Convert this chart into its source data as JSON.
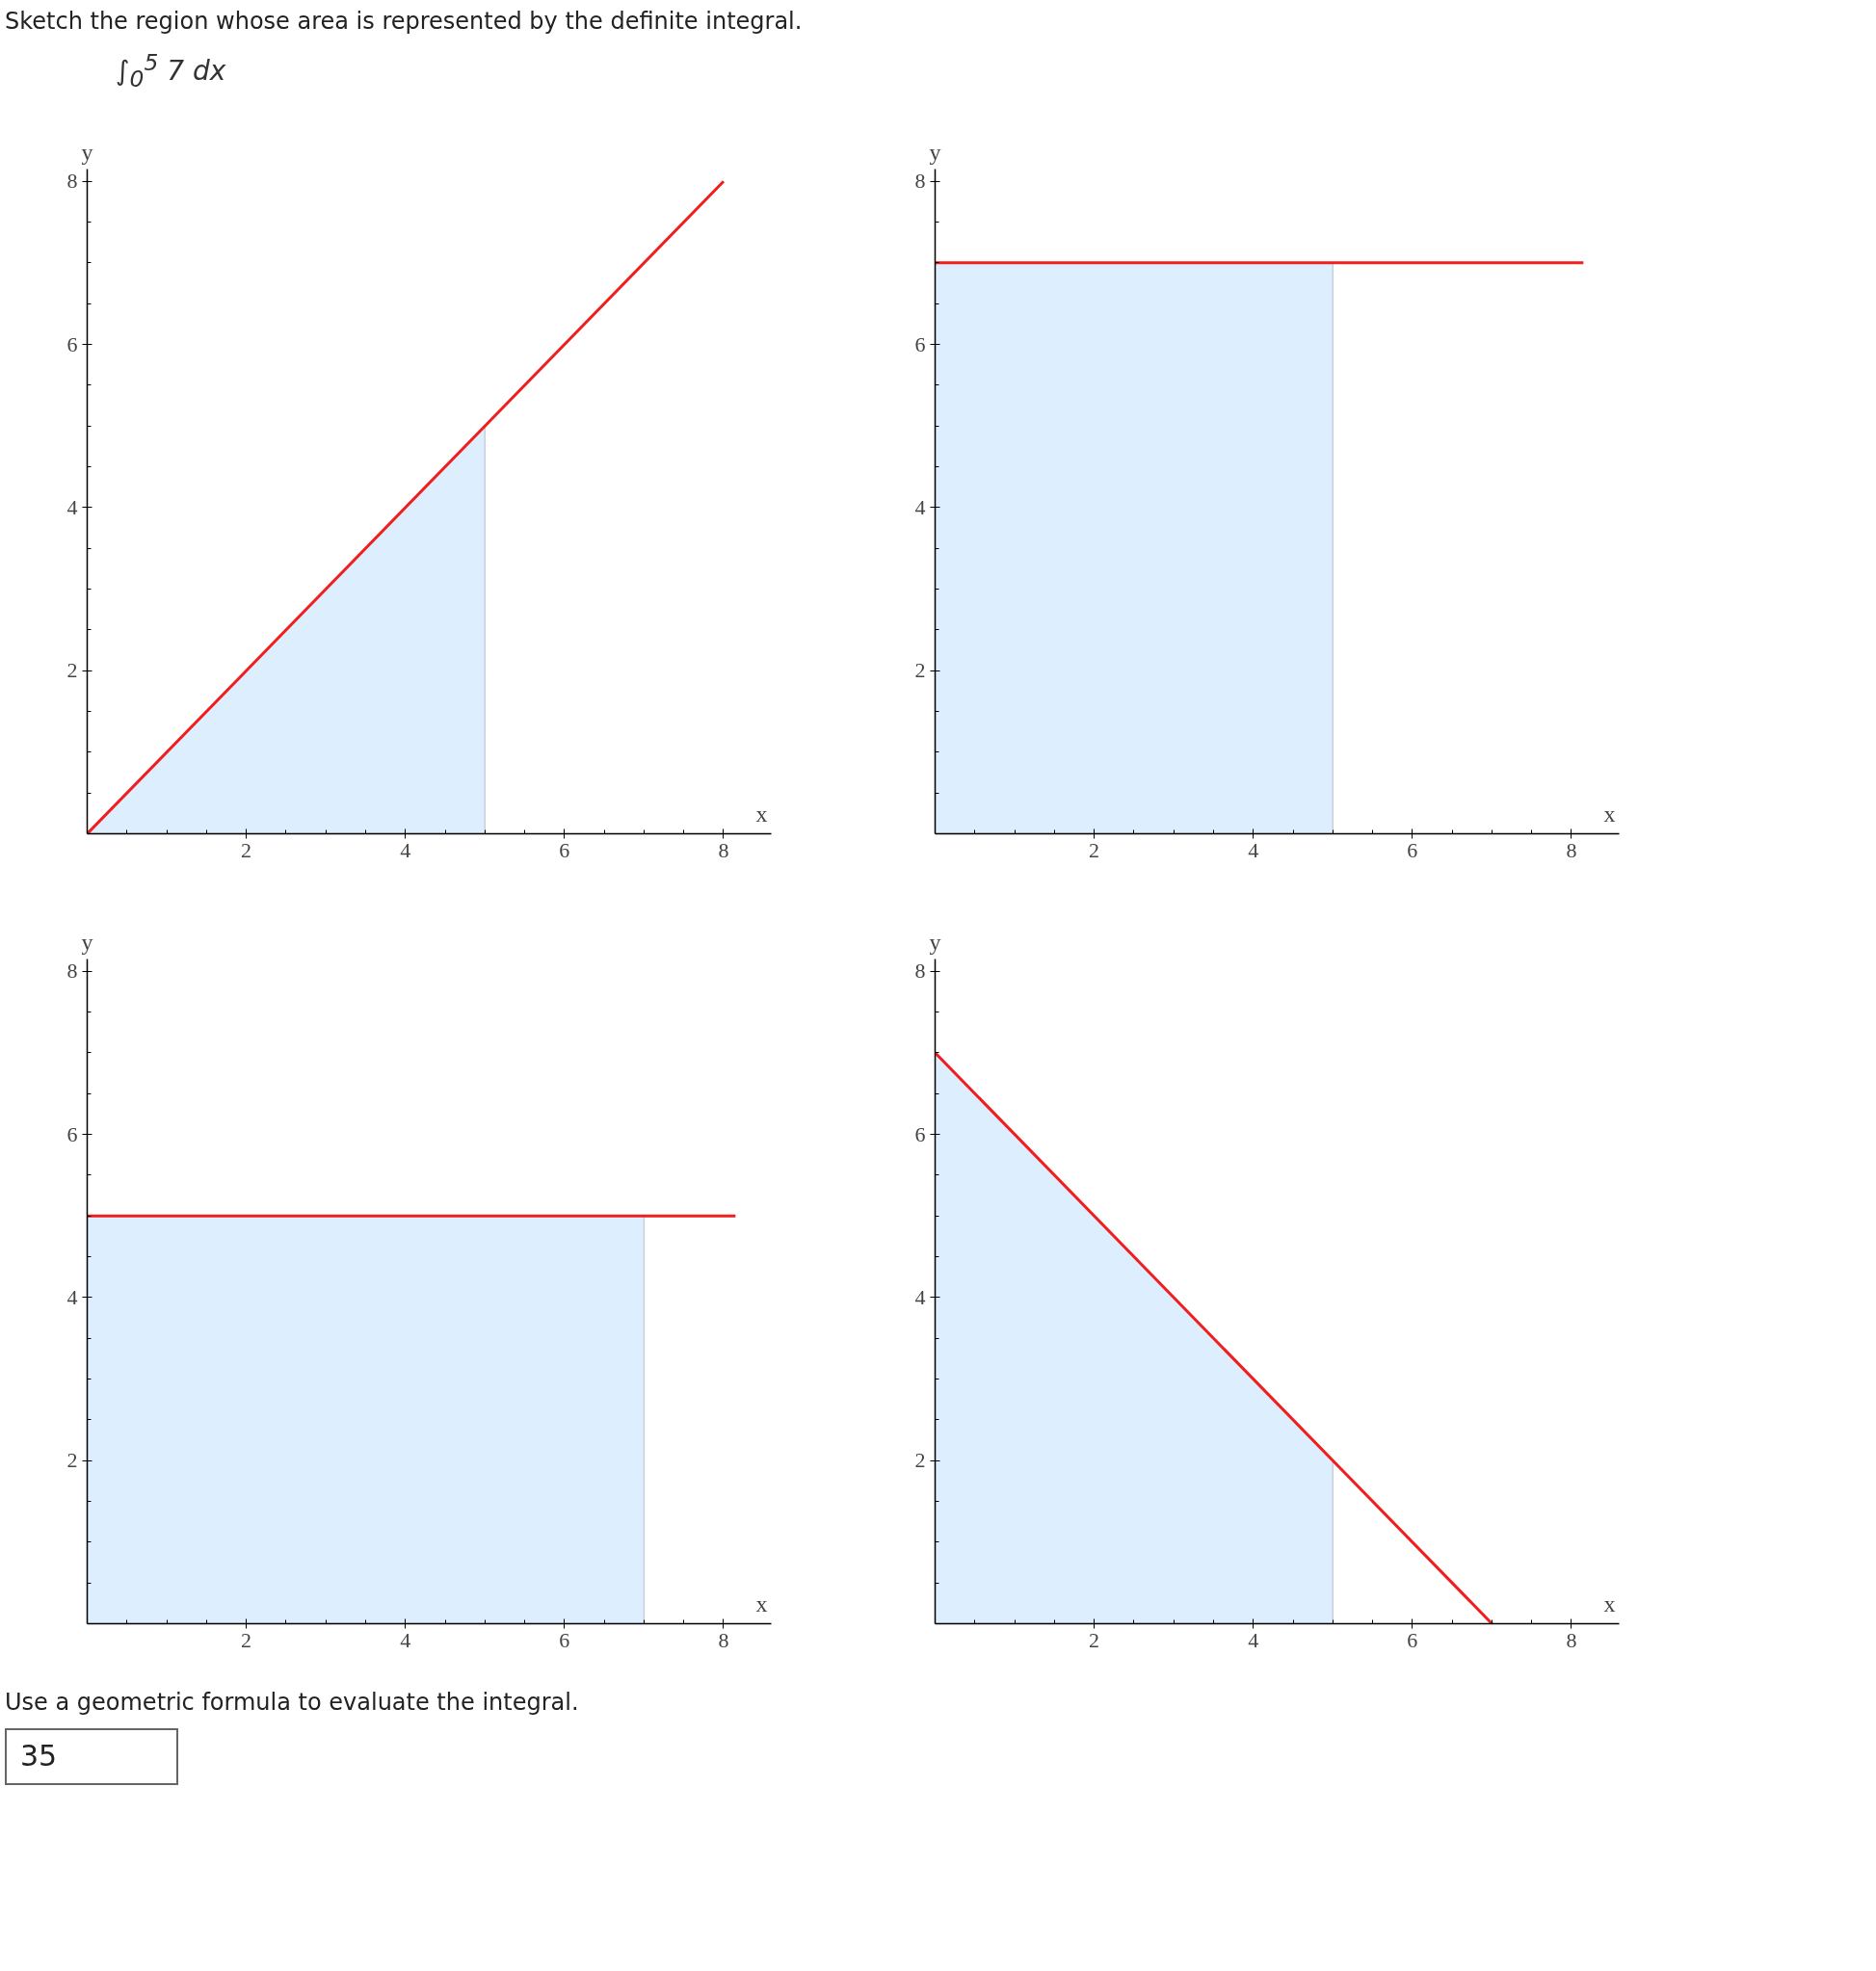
{
  "chart_data": [
    {
      "type": "line",
      "title": "Sketch the region whose area is represented by the definite integral.",
      "subtitle": "∫$_{0}$$^{5}$ 7 dx",
      "xlabel": "x",
      "ylabel": "y",
      "xlim": [
        0,
        8.6
      ],
      "ylim": [
        0,
        8.15
      ],
      "xticks": [
        {
          "value": 0.5,
          "label": null
        },
        {
          "value": 1,
          "label": null
        },
        {
          "value": 1.5,
          "label": null
        },
        2,
        {
          "value": 2.5,
          "label": null
        },
        {
          "value": 3,
          "label": null
        },
        {
          "value": 3.5,
          "label": null
        },
        4,
        {
          "value": 4.5,
          "label": null
        },
        {
          "value": 5,
          "label": null
        },
        {
          "value": 5.5,
          "label": null
        },
        6,
        {
          "value": 6.5,
          "label": null
        },
        {
          "value": 7,
          "label": null
        },
        {
          "value": 7.5,
          "label": null
        },
        8
      ],
      "yticks": [
        {
          "value": 0.5,
          "label": null
        },
        {
          "value": 1,
          "label": null
        },
        {
          "value": 1.5,
          "label": null
        },
        2,
        {
          "value": 2.5,
          "label": null
        },
        {
          "value": 3,
          "label": null
        },
        {
          "value": 3.5,
          "label": null
        },
        4,
        {
          "value": 4.5,
          "label": null
        },
        {
          "value": 5,
          "label": null
        },
        {
          "value": 5.5,
          "label": null
        },
        6,
        {
          "value": 6.5,
          "label": null
        },
        {
          "value": 7,
          "label": null
        },
        {
          "value": 7.5,
          "label": null
        },
        8
      ],
      "series": [
        {
          "type": "area",
          "color": "#ddeeff",
          "x": [
            0,
            5
          ],
          "values": [
            0,
            5
          ]
        },
        {
          "color": "#f01e1e",
          "x": [
            0,
            8
          ],
          "values": [
            0,
            8
          ]
        }
      ]
    },
    {
      "type": "line",
      "xlabel": "x",
      "ylabel": "y",
      "xlim": [
        0,
        8.6
      ],
      "ylim": [
        0,
        8.15
      ],
      "xticks": [
        {
          "value": 0.5,
          "label": null
        },
        {
          "value": 1,
          "label": null
        },
        {
          "value": 1.5,
          "label": null
        },
        2,
        {
          "value": 2.5,
          "label": null
        },
        {
          "value": 3,
          "label": null
        },
        {
          "value": 3.5,
          "label": null
        },
        4,
        {
          "value": 4.5,
          "label": null
        },
        {
          "value": 5,
          "label": null
        },
        {
          "value": 5.5,
          "label": null
        },
        6,
        {
          "value": 6.5,
          "label": null
        },
        {
          "value": 7,
          "label": null
        },
        {
          "value": 7.5,
          "label": null
        },
        8
      ],
      "yticks": [
        {
          "value": 0.5,
          "label": null
        },
        {
          "value": 1,
          "label": null
        },
        {
          "value": 1.5,
          "label": null
        },
        2,
        {
          "value": 2.5,
          "label": null
        },
        {
          "value": 3,
          "label": null
        },
        {
          "value": 3.5,
          "label": null
        },
        4,
        {
          "value": 4.5,
          "label": null
        },
        {
          "value": 5,
          "label": null
        },
        {
          "value": 5.5,
          "label": null
        },
        6,
        {
          "value": 6.5,
          "label": null
        },
        {
          "value": 7,
          "label": null
        },
        {
          "value": 7.5,
          "label": null
        },
        8
      ],
      "series": [
        {
          "type": "area",
          "color": "#ddeeff",
          "x": [
            0,
            5
          ],
          "values": [
            7,
            7
          ]
        },
        {
          "color": "#f01e1e",
          "x": [
            0,
            8.15
          ],
          "values": [
            7,
            7
          ]
        }
      ]
    },
    {
      "type": "line",
      "xlabel": "x",
      "ylabel": "y",
      "xlim": [
        0,
        8.6
      ],
      "ylim": [
        0,
        8.15
      ],
      "xticks": [
        {
          "value": 0.5,
          "label": null
        },
        {
          "value": 1,
          "label": null
        },
        {
          "value": 1.5,
          "label": null
        },
        2,
        {
          "value": 2.5,
          "label": null
        },
        {
          "value": 3,
          "label": null
        },
        {
          "value": 3.5,
          "label": null
        },
        4,
        {
          "value": 4.5,
          "label": null
        },
        {
          "value": 5,
          "label": null
        },
        {
          "value": 5.5,
          "label": null
        },
        6,
        {
          "value": 6.5,
          "label": null
        },
        {
          "value": 7,
          "label": null
        },
        {
          "value": 7.5,
          "label": null
        },
        8
      ],
      "yticks": [
        {
          "value": 0.5,
          "label": null
        },
        {
          "value": 1,
          "label": null
        },
        {
          "value": 1.5,
          "label": null
        },
        2,
        {
          "value": 2.5,
          "label": null
        },
        {
          "value": 3,
          "label": null
        },
        {
          "value": 3.5,
          "label": null
        },
        4,
        {
          "value": 4.5,
          "label": null
        },
        {
          "value": 5,
          "label": null
        },
        {
          "value": 5.5,
          "label": null
        },
        6,
        {
          "value": 6.5,
          "label": null
        },
        {
          "value": 7,
          "label": null
        },
        {
          "value": 7.5,
          "label": null
        },
        8
      ],
      "series": [
        {
          "type": "area",
          "color": "#ddeeff",
          "x": [
            0,
            7
          ],
          "values": [
            5,
            5
          ]
        },
        {
          "color": "#f01e1e",
          "x": [
            0,
            8.15
          ],
          "values": [
            5,
            5
          ]
        }
      ]
    },
    {
      "type": "line",
      "xlabel": "x",
      "ylabel": "y",
      "xlim": [
        0,
        8.6
      ],
      "ylim": [
        0,
        8.15
      ],
      "xticks": [
        {
          "value": 0.5,
          "label": null
        },
        {
          "value": 1,
          "label": null
        },
        {
          "value": 1.5,
          "label": null
        },
        2,
        {
          "value": 2.5,
          "label": null
        },
        {
          "value": 3,
          "label": null
        },
        {
          "value": 3.5,
          "label": null
        },
        4,
        {
          "value": 4.5,
          "label": null
        },
        {
          "value": 5,
          "label": null
        },
        {
          "value": 5.5,
          "label": null
        },
        6,
        {
          "value": 6.5,
          "label": null
        },
        {
          "value": 7,
          "label": null
        },
        {
          "value": 7.5,
          "label": null
        },
        8
      ],
      "yticks": [
        {
          "value": 0.5,
          "label": null
        },
        {
          "value": 1,
          "label": null
        },
        {
          "value": 1.5,
          "label": null
        },
        2,
        {
          "value": 2.5,
          "label": null
        },
        {
          "value": 3,
          "label": null
        },
        {
          "value": 3.5,
          "label": null
        },
        4,
        {
          "value": 4.5,
          "label": null
        },
        {
          "value": 5,
          "label": null
        },
        {
          "value": 5.5,
          "label": null
        },
        6,
        {
          "value": 6.5,
          "label": null
        },
        {
          "value": 7,
          "label": null
        },
        {
          "value": 7.5,
          "label": null
        },
        8
      ],
      "series": [
        {
          "type": "area",
          "color": "#ddeeff",
          "x": [
            0,
            5
          ],
          "values": [
            7,
            2
          ]
        },
        {
          "color": "#f01e1e",
          "x": [
            0,
            7
          ],
          "values": [
            7,
            0
          ]
        }
      ],
      "annotations": [
        "Use a geometric formula to evaluate the integral.",
        "35"
      ]
    }
  ]
}
